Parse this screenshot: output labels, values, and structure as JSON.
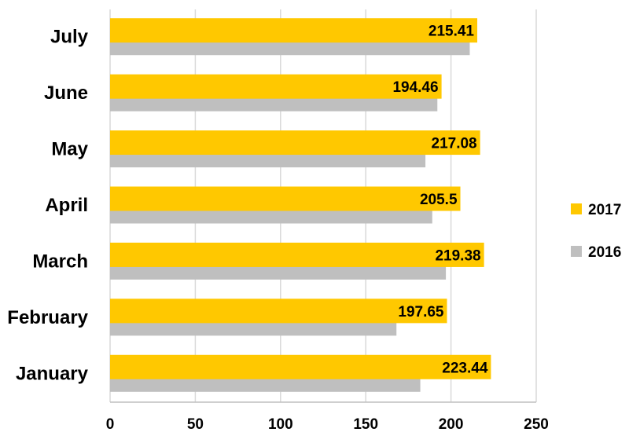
{
  "chart_data": {
    "type": "bar",
    "orientation": "horizontal",
    "categories": [
      "January",
      "February",
      "March",
      "April",
      "May",
      "June",
      "July"
    ],
    "series": [
      {
        "name": "2017",
        "color": "#FFC800",
        "values": [
          223.44,
          197.65,
          219.38,
          205.5,
          217.08,
          194.46,
          215.41
        ],
        "data_labels": [
          "223.44",
          "197.65",
          "219.38",
          "205.5",
          "217.08",
          "194.46",
          "215.41"
        ]
      },
      {
        "name": "2016",
        "color": "#BFBFBF",
        "values": [
          182,
          168,
          197,
          189,
          185,
          192,
          211
        ]
      }
    ],
    "xlim": [
      0,
      250
    ],
    "x_ticks": [
      "0",
      "50",
      "100",
      "150",
      "200",
      "250"
    ],
    "grid": true,
    "legend_position": "right"
  }
}
